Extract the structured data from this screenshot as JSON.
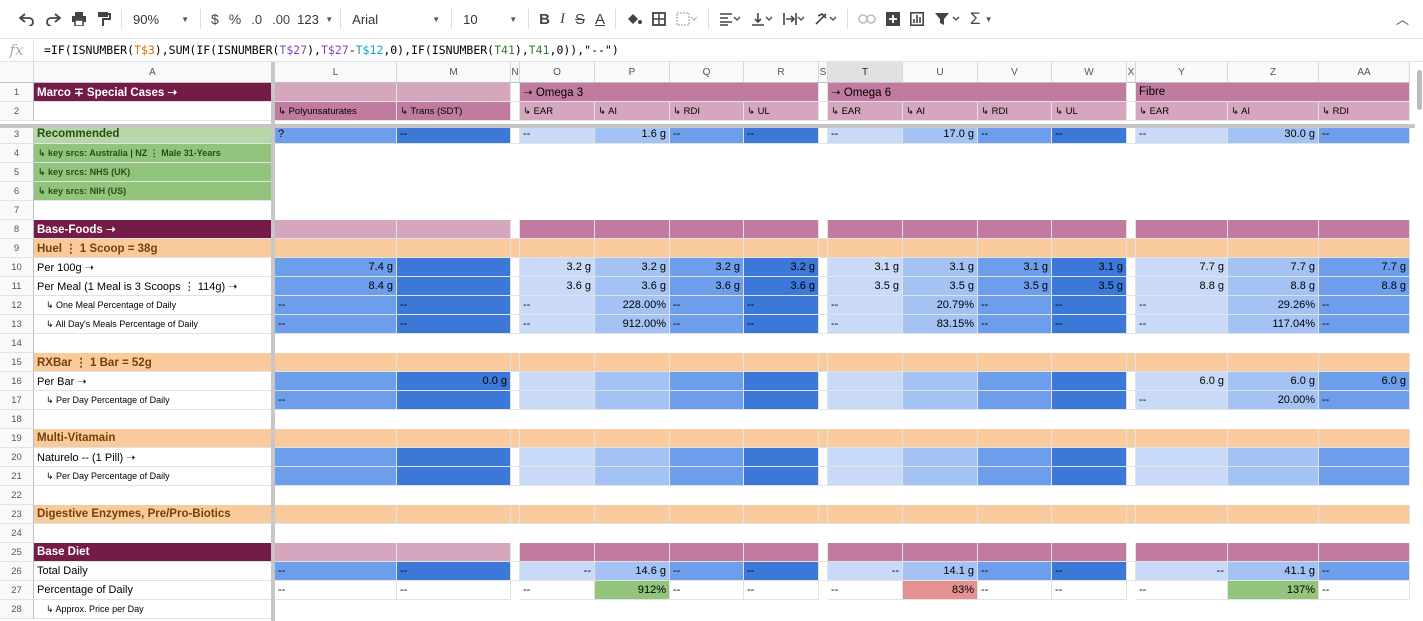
{
  "toolbar": {
    "zoom": "90%",
    "currency": "$",
    "percent": "%",
    "dec_decrease": ".0",
    "dec_increase": ".00",
    "format_more": "123",
    "font": "Arial",
    "font_size": "10"
  },
  "formula_bar": {
    "fx": "fx",
    "formula_parts": [
      "=IF(ISNUMBER(",
      "T$3",
      "),SUM(IF(ISNUMBER(",
      "T$27",
      "),",
      "T$27",
      "-",
      "T$12",
      ",0),IF(ISNUMBER(",
      "T41",
      "),",
      "T41",
      ",0)),\"--\")"
    ]
  },
  "columns": [
    "A",
    "L",
    "M",
    "N",
    "O",
    "P",
    "Q",
    "R",
    "S",
    "T",
    "U",
    "V",
    "W",
    "X",
    "Y",
    "Z",
    "AA"
  ],
  "rows": [
    "1",
    "2",
    "3",
    "4",
    "5",
    "6",
    "7",
    "8",
    "9",
    "10",
    "11",
    "12",
    "13",
    "14",
    "15",
    "16",
    "17",
    "18",
    "19",
    "20",
    "21",
    "22",
    "23",
    "24",
    "25",
    "26",
    "27",
    "28"
  ],
  "colors": {
    "maroon": "#741b47",
    "pink": "#d5a6bd",
    "magenta": "#c27ba0",
    "peach": "#f9cb9c",
    "green": "#93c47d",
    "green_light": "#b6d7a8",
    "blue_light": "#c9daf8",
    "blue_mid": "#a4c2f4",
    "blue": "#6d9eeb",
    "blue_dark": "#3c78d8",
    "pct_green": "#93c47d",
    "pct_red": "#e69191"
  },
  "labels": {
    "a1": "Marco ∓ Special Cases ➝",
    "a3": "Recommended",
    "a4": "↳ key srcs: Australia | NZ ⋮ Male 31-Years",
    "a5": "↳ key srcs: NHS (UK)",
    "a6": "↳ key srcs: NIH (US)",
    "a8": "Base-Foods ➝",
    "a9": "Huel ⋮ 1 Scoop = 38g",
    "a10": "Per 100g ➝",
    "a11": "Per Meal (1 Meal is 3 Scoops ⋮ 114g) ➝",
    "a12": "↳ One Meal Percentage of Daily",
    "a13": "↳ All Day's Meals Percentage of Daily",
    "a15": "RXBar ⋮ 1 Bar = 52g",
    "a16": "Per Bar ➝",
    "a17": "↳ Per Day Percentage of Daily",
    "a19": "Multi-Vitamain",
    "a20": "Naturelo -- (1 Pill) ➝",
    "a21": "↳ Per Day Percentage of Daily",
    "a23": "Digestive Enzymes, Pre/Pro-Biotics",
    "a25": "Base Diet",
    "a26": "Total Daily",
    "a27": "Percentage of Daily",
    "a28": "↳ Approx. Price per Day",
    "l2": "↳ Polyunsaturates",
    "m2": "↳ Trans (SDT)",
    "o1": "➝ Omega 3",
    "t1": "➝ Omega 6",
    "y1": "Fibre",
    "ear": "↳ EAR",
    "ai": "↳ AI",
    "rdi": "↳ RDI",
    "ul": "↳ UL",
    "ear_y": "↳ EAR",
    "ai_z": "↳ AI",
    "rdi_aa": "↳ RDI",
    "tail": "↳"
  },
  "values": {
    "l3": "?",
    "dash": "--",
    "p3": "1.6 g",
    "u3": "17.0 g",
    "z3": "30.0 g",
    "l10": "7.4 g",
    "l11": "8.4 g",
    "o10": "3.2 g",
    "p10": "3.2 g",
    "q10": "3.2 g",
    "r10": "3.2 g",
    "o11": "3.6 g",
    "p11": "3.6 g",
    "q11": "3.6 g",
    "r11": "3.6 g",
    "t10": "3.1 g",
    "u10": "3.1 g",
    "v10": "3.1 g",
    "w10": "3.1 g",
    "t11": "3.5 g",
    "u11": "3.5 g",
    "v11": "3.5 g",
    "w11": "3.5 g",
    "y10": "7.7 g",
    "z10": "7.7 g",
    "aa10": "7.7 g",
    "y11": "8.8 g",
    "z11": "8.8 g",
    "aa11": "8.8 g",
    "p12": "228.00%",
    "p13": "912.00%",
    "u12": "20.79%",
    "u13": "83.15%",
    "z12": "29.26%",
    "z13": "117.04%",
    "m16": "0.0 g",
    "y16": "6.0 g",
    "z16": "6.0 g",
    "aa16": "6.0 g",
    "z17": "20.00%",
    "p26": "14.6 g",
    "u26": "14.1 g",
    "z26": "41.1 g",
    "p27": "912%",
    "u27": "83%",
    "z27": "137%"
  }
}
